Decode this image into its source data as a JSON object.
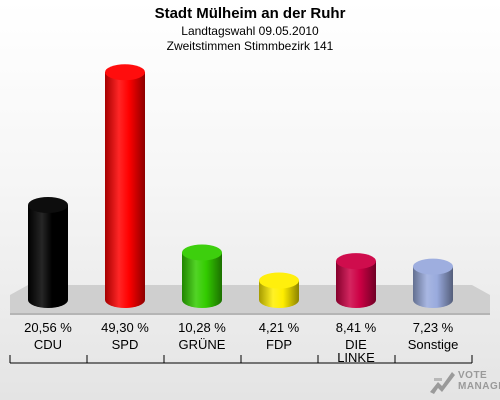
{
  "header": {
    "title": "Stadt Mülheim an der Ruhr",
    "subtitle1": "Landtagswahl 09.05.2010",
    "subtitle2": "Zweitstimmen Stimmbezirk 141"
  },
  "chart_data": {
    "type": "bar",
    "title": "Stadt Mülheim an der Ruhr",
    "subtitle": "Landtagswahl 09.05.2010 · Zweitstimmen Stimmbezirk 141",
    "categories": [
      "CDU",
      "SPD",
      "GRÜNE",
      "FDP",
      "DIE LINKE",
      "Sonstige"
    ],
    "values": [
      20.56,
      49.3,
      10.28,
      4.21,
      8.41,
      7.23
    ],
    "value_labels": [
      "20,56 %",
      "49,30 %",
      "10,28 %",
      "4,21 %",
      "8,41 %",
      "7,23 %"
    ],
    "colors": [
      "#000000",
      "#ff0000",
      "#33cc00",
      "#ffee00",
      "#cc0044",
      "#99aadd"
    ],
    "ylim": [
      0,
      50
    ],
    "grid": false,
    "legend": "none"
  },
  "logo": {
    "line1": "VOTE",
    "line2": "MANAGER"
  }
}
